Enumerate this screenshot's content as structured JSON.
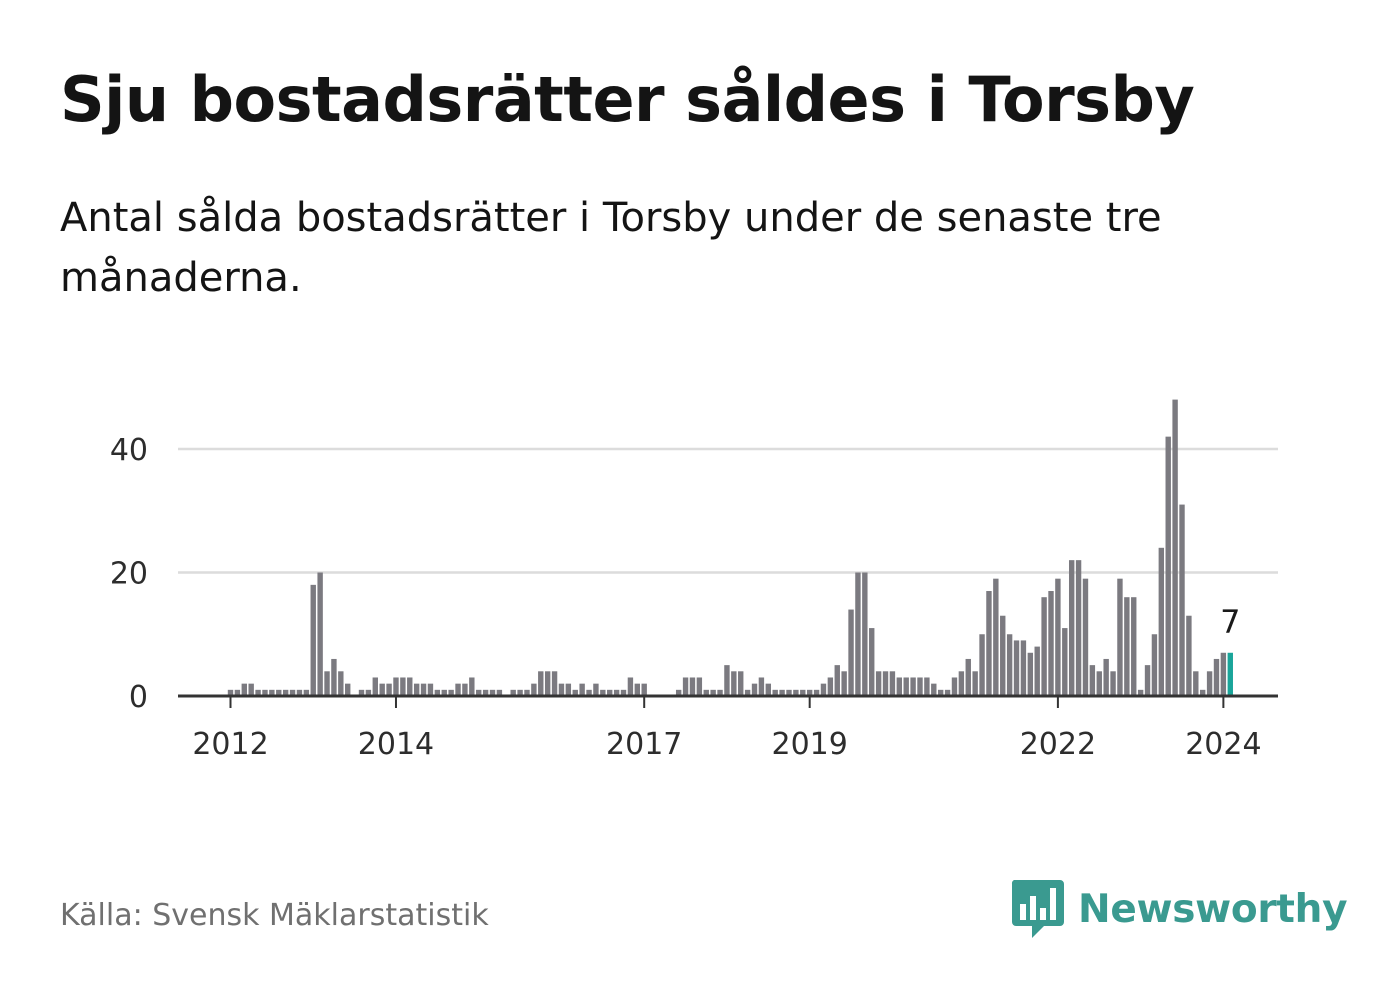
{
  "title": "Sju bostadsrätter såldes i Torsby",
  "subtitle": "Antal sålda bostadsrätter i Torsby under de senaste tre månaderna.",
  "source": "Källa: Svensk Mäklarstatistik",
  "brand": "Newsworthy",
  "colors": {
    "bar": "#7b7a80",
    "highlight": "#1aa59a",
    "grid": "#dcdcdc",
    "axis": "#333333",
    "brand": "#3a9a90"
  },
  "chart_data": {
    "type": "bar",
    "title": "Sju bostadsrätter såldes i Torsby",
    "xlabel": "",
    "ylabel": "",
    "ylim": [
      0,
      50
    ],
    "y_ticks": [
      0,
      20,
      40
    ],
    "x_ticks": [
      {
        "label": "2012",
        "index": 0
      },
      {
        "label": "2014",
        "index": 24
      },
      {
        "label": "2017",
        "index": 60
      },
      {
        "label": "2019",
        "index": 84
      },
      {
        "label": "2022",
        "index": 120
      },
      {
        "label": "2024",
        "index": 144
      }
    ],
    "start_index": -8,
    "categories_note": "Monthly observations (rolling 3-month sales), earliest to latest; index 0 = first month of 2012",
    "values": [
      0,
      0,
      0,
      0,
      0,
      0,
      0,
      0,
      1,
      1,
      2,
      2,
      1,
      1,
      1,
      1,
      1,
      1,
      1,
      1,
      18,
      20,
      4,
      6,
      4,
      2,
      0,
      1,
      1,
      3,
      2,
      2,
      3,
      3,
      3,
      2,
      2,
      2,
      1,
      1,
      1,
      2,
      2,
      3,
      1,
      1,
      1,
      1,
      0,
      1,
      1,
      1,
      2,
      4,
      4,
      4,
      2,
      2,
      1,
      2,
      1,
      2,
      1,
      1,
      1,
      1,
      3,
      2,
      2,
      0,
      0,
      0,
      0,
      1,
      3,
      3,
      3,
      1,
      1,
      1,
      5,
      4,
      4,
      1,
      2,
      3,
      2,
      1,
      1,
      1,
      1,
      1,
      1,
      1,
      2,
      3,
      5,
      4,
      14,
      20,
      20,
      11,
      4,
      4,
      4,
      3,
      3,
      3,
      3,
      3,
      2,
      1,
      1,
      3,
      4,
      6,
      4,
      10,
      17,
      19,
      13,
      10,
      9,
      9,
      7,
      8,
      16,
      17,
      19,
      11,
      22,
      22,
      19,
      5,
      4,
      6,
      4,
      19,
      16,
      16,
      1,
      5,
      10,
      24,
      42,
      48,
      31,
      13,
      4,
      1,
      4,
      6,
      7,
      7
    ],
    "highlight_last": true,
    "last_value_label": "7"
  }
}
